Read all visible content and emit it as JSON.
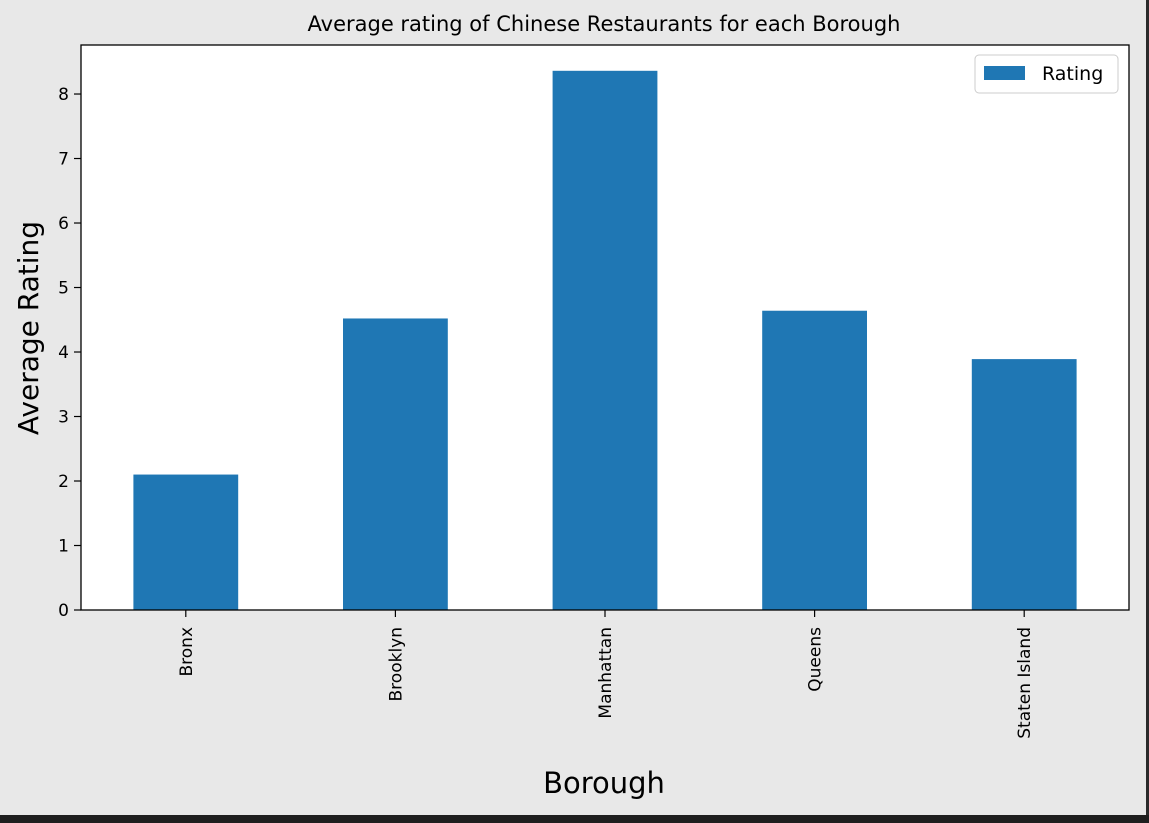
{
  "chart_data": {
    "type": "bar",
    "title": "Average rating of Chinese Restaurants for each Borough",
    "xlabel": "Borough",
    "ylabel": "Average Rating",
    "categories": [
      "Bronx",
      "Brooklyn",
      "Manhattan",
      "Queens",
      "Staten Island"
    ],
    "series": [
      {
        "name": "Rating",
        "values": [
          2.1,
          4.52,
          8.36,
          4.64,
          3.89
        ]
      }
    ],
    "ylim": [
      0,
      8.76
    ],
    "yticks": [
      0,
      1,
      2,
      3,
      4,
      5,
      6,
      7,
      8
    ],
    "grid": false,
    "legend_position": "top-right",
    "colors": {
      "bar": "#1f77b4",
      "axes_background": "#ffffff",
      "figure_background": "#e8e8e8"
    }
  }
}
